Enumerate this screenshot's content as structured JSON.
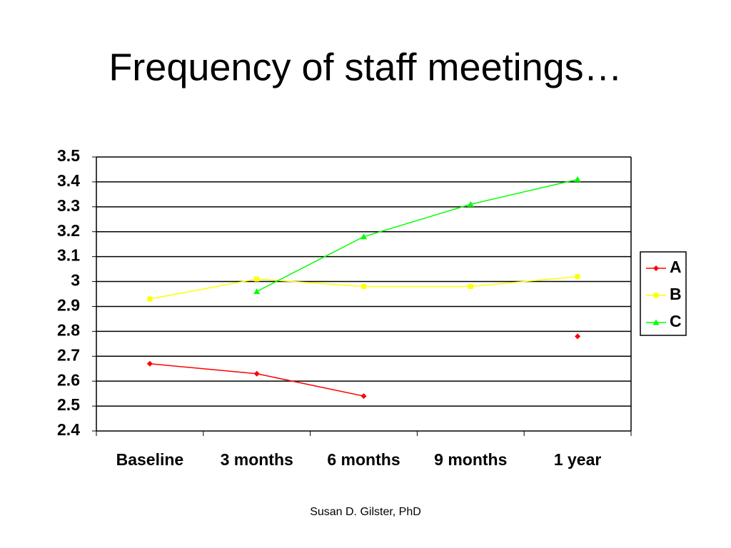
{
  "chart_data": {
    "type": "line",
    "title": "Frequency of staff meetings…",
    "categories": [
      "Baseline",
      "3 months",
      "6 months",
      "9 months",
      "1 year"
    ],
    "series": [
      {
        "name": "A",
        "color": "#ff0000",
        "marker": "diamond",
        "values": [
          2.67,
          2.63,
          2.54,
          null,
          2.78
        ]
      },
      {
        "name": "B",
        "color": "#ffff00",
        "marker": "square",
        "values": [
          2.93,
          3.01,
          2.98,
          2.98,
          3.02
        ]
      },
      {
        "name": "C",
        "color": "#00ff00",
        "marker": "triangle",
        "values": [
          null,
          2.96,
          3.18,
          3.31,
          3.41
        ]
      }
    ],
    "ylim": [
      2.4,
      3.5
    ],
    "yticks": [
      2.4,
      2.5,
      2.6,
      2.7,
      2.8,
      2.9,
      3,
      3.1,
      3.2,
      3.3,
      3.4,
      3.5
    ],
    "grid": true,
    "legend": "right"
  },
  "footer": "Susan D. Gilster, PhD"
}
